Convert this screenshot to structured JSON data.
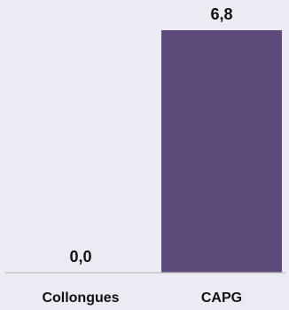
{
  "chart_data": {
    "type": "bar",
    "categories": [
      "Collongues",
      "CAPG"
    ],
    "values": [
      0.0,
      6.8
    ],
    "data_labels": [
      "0,0",
      "6,8"
    ],
    "title": "",
    "xlabel": "",
    "ylabel": "",
    "ylim": [
      0,
      6.8
    ],
    "grid": false,
    "legend": "none",
    "colors": {
      "bar": "#5f4a7c",
      "baseline": "#bdbdbd",
      "background": "#eceaf2"
    }
  }
}
